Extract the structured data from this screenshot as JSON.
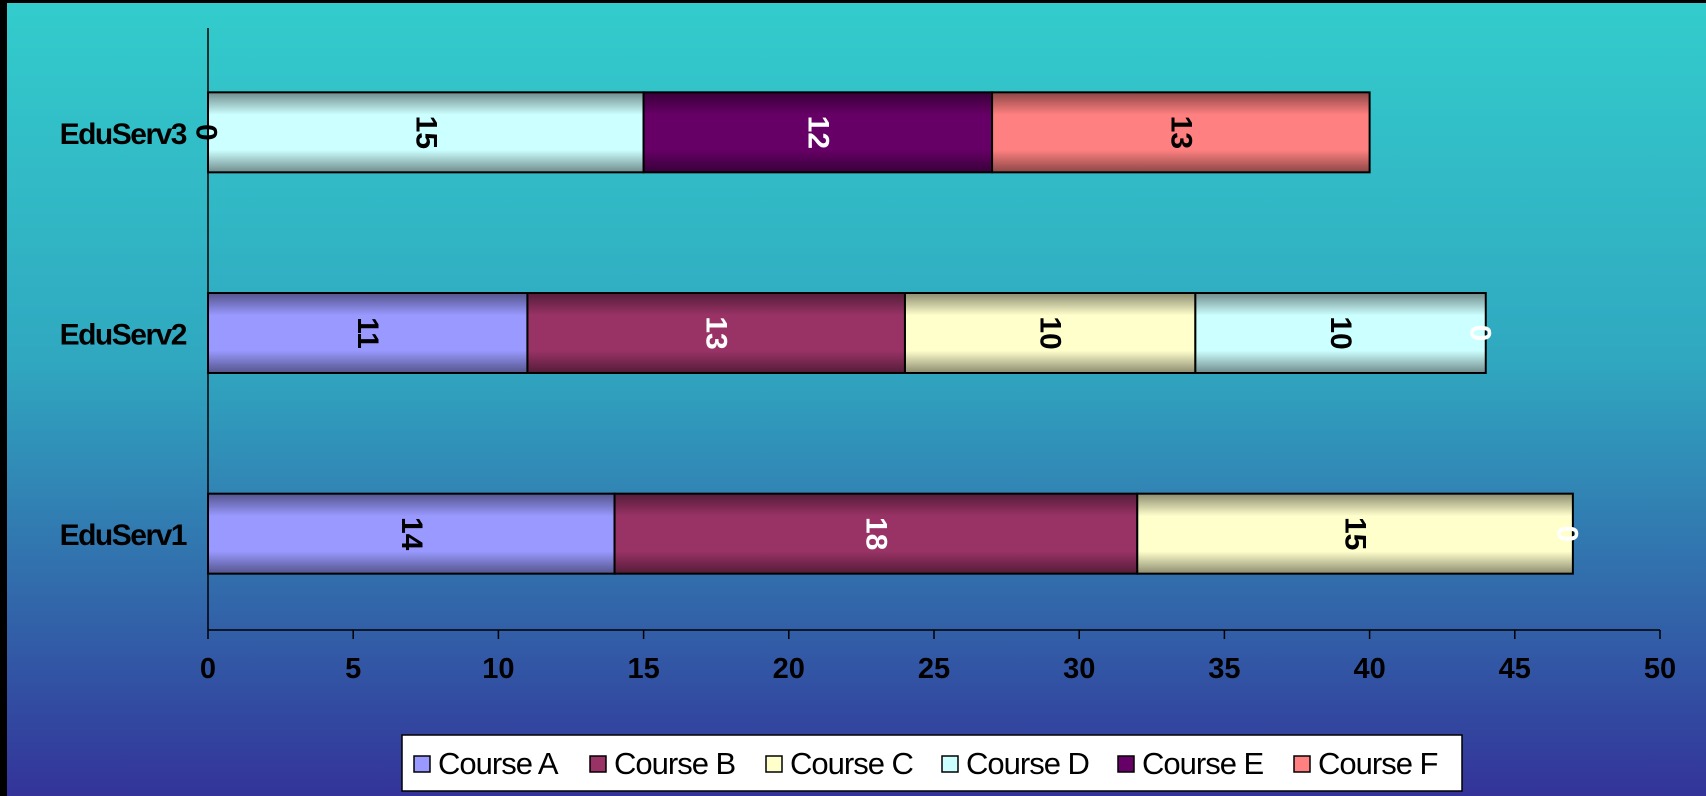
{
  "chart_data": {
    "type": "bar",
    "orientation": "horizontal",
    "stacked": true,
    "title": "",
    "xlabel": "",
    "ylabel": "",
    "categories": [
      "EduServ1",
      "EduServ2",
      "EduServ3"
    ],
    "series": [
      {
        "name": "Course A",
        "values": [
          14,
          11,
          0
        ],
        "color": "#9999ff",
        "label_color": "#000000"
      },
      {
        "name": "Course B",
        "values": [
          18,
          13,
          0
        ],
        "color": "#993366",
        "label_color": "#ffffff"
      },
      {
        "name": "Course C",
        "values": [
          15,
          10,
          0
        ],
        "color": "#ffffcc",
        "label_color": "#000000"
      },
      {
        "name": "Course D",
        "values": [
          0,
          10,
          15
        ],
        "color": "#ccffff",
        "label_color": "#000000"
      },
      {
        "name": "Course E",
        "values": [
          0,
          0,
          12
        ],
        "color": "#660066",
        "label_color": "#ffffff"
      },
      {
        "name": "Course F",
        "values": [
          0,
          0,
          13
        ],
        "color": "#ff8080",
        "label_color": "#000000"
      }
    ],
    "xlim": [
      0,
      50
    ],
    "xticks": [
      0,
      5,
      10,
      15,
      20,
      25,
      30,
      35,
      40,
      45,
      50
    ],
    "grid": false,
    "legend_position": "bottom",
    "data_labels": true,
    "data_label_rotation": 90,
    "zero_labels": {
      "EduServ1": "0",
      "EduServ2": "0",
      "EduServ3": "0"
    },
    "background_gradient": [
      "#33cccc",
      "#333399"
    ]
  }
}
